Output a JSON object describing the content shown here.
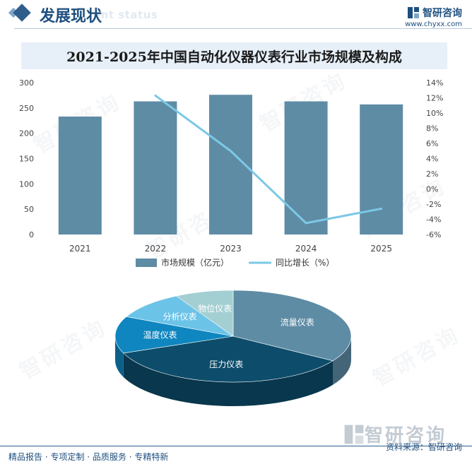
{
  "header": {
    "title": "发展现状",
    "subtitle": "ent status",
    "brand_name": "智研咨询",
    "brand_url": "www.chyxx.com"
  },
  "watermark": {
    "text": "智研咨询"
  },
  "chart_data": [
    {
      "type": "bar",
      "title": "2021-2025年中国自动化仪器仪表行业市场规模及构成",
      "categories": [
        "2021",
        "2022",
        "2023",
        "2024",
        "2025"
      ],
      "series": [
        {
          "name": "市场规模（亿元）",
          "type": "bar",
          "axis": "left",
          "color": "#5e8ca5",
          "values": [
            233,
            263,
            276,
            263,
            257
          ]
        },
        {
          "name": "同比增长（%）",
          "type": "line",
          "axis": "right",
          "color": "#7cc8e5",
          "values": [
            null,
            12.3,
            5.0,
            -4.5,
            -2.6
          ]
        }
      ],
      "y_left": {
        "ticks": [
          "300",
          "250",
          "200",
          "150",
          "100",
          "50",
          "0"
        ],
        "range": [
          0,
          300
        ]
      },
      "y_right": {
        "ticks": [
          "14%",
          "12%",
          "10%",
          "8%",
          "6%",
          "4%",
          "2%",
          "0%",
          "-2%",
          "-4%",
          "-6%"
        ],
        "range": [
          -6,
          14
        ]
      },
      "legend_placement": "bottom",
      "grid": false
    },
    {
      "type": "pie",
      "style": "3d",
      "series": [
        {
          "name": "流量仪表",
          "value": 34,
          "color": "#5e8ca5"
        },
        {
          "name": "压力仪表",
          "value": 35,
          "color": "#0d4d6b"
        },
        {
          "name": "温度仪表",
          "value": 13,
          "color": "#0f86bf"
        },
        {
          "name": "分析仪表",
          "value": 10,
          "color": "#6cc3e8"
        },
        {
          "name": "物位仪表",
          "value": 8,
          "color": "#a3cfd3"
        }
      ]
    }
  ],
  "footer": {
    "tagline": "精品报告 · 专项定制 · 品质服务 · 专精特新",
    "source": "资料来源：智研咨询"
  }
}
